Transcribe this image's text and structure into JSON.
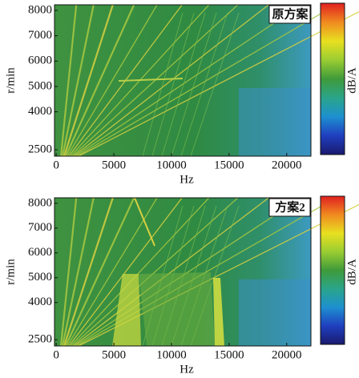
{
  "chart_data": [
    {
      "type": "heatmap",
      "title": "原方案",
      "xlabel": "Hz",
      "ylabel": "r/min",
      "colorbar_label": "dB/A",
      "xlim": [
        -150,
        22100
      ],
      "xticks": [
        0,
        5000,
        10000,
        15000,
        20000
      ],
      "ylim": [
        2250,
        8220
      ],
      "yticks": [
        2500,
        4000,
        5000,
        6000,
        7000,
        8000
      ],
      "colorscale": [
        "#1a1a6e",
        "#1f3fbf",
        "#1e90d0",
        "#2aa58a",
        "#3f9a3a",
        "#9acd32",
        "#e8e020",
        "#f08a20",
        "#e02020"
      ]
    },
    {
      "type": "heatmap",
      "title": "方案2",
      "xlabel": "Hz",
      "ylabel": "r/min",
      "colorbar_label": "dB/A",
      "xlim": [
        -150,
        22100
      ],
      "xticks": [
        0,
        5000,
        10000,
        15000,
        20000
      ],
      "ylim": [
        2250,
        8220
      ],
      "yticks": [
        2500,
        4000,
        5000,
        6000,
        7000,
        8000
      ],
      "colorscale": [
        "#1a1a6e",
        "#1f3fbf",
        "#1e90d0",
        "#2aa58a",
        "#3f9a3a",
        "#9acd32",
        "#e8e020",
        "#f08a20",
        "#e02020"
      ]
    }
  ]
}
